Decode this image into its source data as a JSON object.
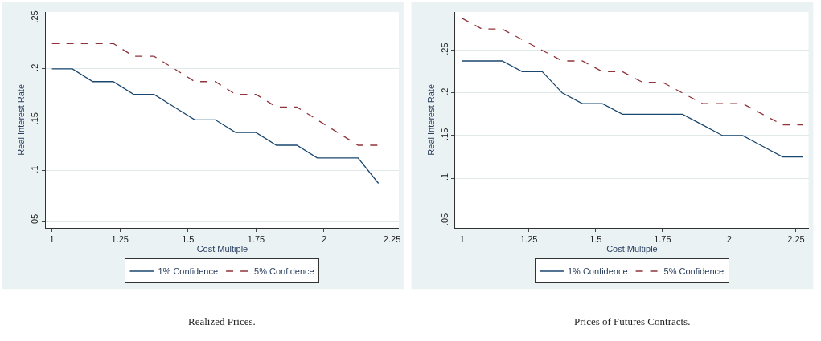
{
  "chart_data": [
    {
      "type": "line",
      "xlabel": "Cost Multiple",
      "ylabel": "Real Interest Rate",
      "annotations": [
        "Realized Prices."
      ],
      "x": [
        1,
        1.075,
        1.15,
        1.225,
        1.3,
        1.375,
        1.45,
        1.525,
        1.6,
        1.675,
        1.75,
        1.825,
        1.9,
        1.975,
        2.05,
        2.125,
        2.2
      ],
      "series": [
        {
          "name": "1% Confidence",
          "color": "#1a476f",
          "line_style": "solid",
          "values": [
            0.2,
            0.2,
            0.1875,
            0.1875,
            0.175,
            0.175,
            0.1625,
            0.15,
            0.15,
            0.1375,
            0.1375,
            0.125,
            0.125,
            0.1125,
            0.1125,
            0.1125,
            0.0875
          ]
        },
        {
          "name": "5% Confidence",
          "color": "#90353b",
          "line_style": "dashed",
          "values": [
            0.225,
            0.225,
            0.225,
            0.225,
            0.2125,
            0.2125,
            0.2,
            0.1875,
            0.1875,
            0.175,
            0.175,
            0.1625,
            0.1625,
            0.15,
            0.1375,
            0.125,
            0.125
          ]
        }
      ],
      "xlim": [
        0.977,
        2.275
      ],
      "xticks": [
        1,
        1.25,
        1.5,
        1.75,
        2,
        2.25
      ],
      "ylim": [
        0.044,
        0.256
      ],
      "yticks": [
        {
          "value": 0.05,
          "label": ".05"
        },
        {
          "value": 0.1,
          "label": ".1"
        },
        {
          "value": 0.15,
          "label": ".15"
        },
        {
          "value": 0.2,
          "label": ".2"
        },
        {
          "value": 0.25,
          "label": ".25"
        }
      ],
      "grid": "y",
      "legend": "bottom",
      "marker": "none"
    },
    {
      "type": "line",
      "xlabel": "Cost Multiple",
      "ylabel": "Real Interest Rate",
      "annotations": [
        "Prices of Futures Contracts."
      ],
      "x": [
        1,
        1.075,
        1.15,
        1.225,
        1.3,
        1.375,
        1.45,
        1.525,
        1.6,
        1.675,
        1.75,
        1.825,
        1.9,
        1.975,
        2.05,
        2.125,
        2.2,
        2.275
      ],
      "series": [
        {
          "name": "1% Confidence",
          "color": "#1a476f",
          "line_style": "solid",
          "values": [
            0.2375,
            0.2375,
            0.2375,
            0.225,
            0.225,
            0.2,
            0.1875,
            0.1875,
            0.175,
            0.175,
            0.175,
            0.175,
            0.1625,
            0.15,
            0.15,
            0.1375,
            0.125,
            0.125
          ]
        },
        {
          "name": "5% Confidence",
          "color": "#90353b",
          "line_style": "dashed",
          "values": [
            0.2875,
            0.275,
            0.275,
            0.2625,
            0.25,
            0.2375,
            0.2375,
            0.225,
            0.225,
            0.2125,
            0.2125,
            0.2,
            0.1875,
            0.1875,
            0.1875,
            0.175,
            0.1625,
            0.1625
          ]
        }
      ],
      "xlim": [
        0.975,
        2.297
      ],
      "xticks": [
        1,
        1.25,
        1.5,
        1.75,
        2,
        2.25
      ],
      "ylim": [
        0.042,
        0.295
      ],
      "yticks": [
        {
          "value": 0.05,
          "label": ".05"
        },
        {
          "value": 0.1,
          "label": ".1"
        },
        {
          "value": 0.15,
          "label": ".15"
        },
        {
          "value": 0.2,
          "label": ".2"
        },
        {
          "value": 0.25,
          "label": ".25"
        }
      ],
      "grid": "y",
      "legend": "bottom",
      "marker": "none"
    }
  ]
}
